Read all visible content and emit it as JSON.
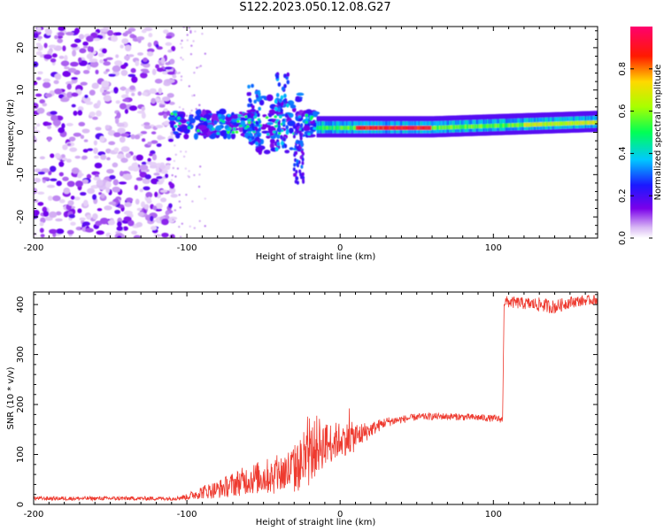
{
  "title": "S122.2023.050.12.08.G27",
  "colors": {
    "snr_line": "#ee3a2f",
    "spectrum_low": "#e9d6f8",
    "spectrum_mid": "#7b00e8",
    "spectrum_high": "#ff0000"
  },
  "chart_data": [
    {
      "type": "heatmap",
      "title": "S122.2023.050.12.08.G27",
      "xlabel": "Height of straight line (km)",
      "ylabel": "Frequency (Hz)",
      "xlim": [
        -200,
        168
      ],
      "ylim": [
        -25,
        25
      ],
      "x_ticks": [
        -200,
        -100,
        0,
        100
      ],
      "y_ticks": [
        -20,
        -10,
        0,
        10,
        20
      ],
      "colorbar": {
        "label": "Normalized spectral amplitude",
        "range": [
          0,
          1
        ],
        "ticks": [
          "0.0",
          "0.2",
          "0.4",
          "0.6",
          "0.8"
        ],
        "colormap": "white-purple-blue-cyan-green-yellow-red-magenta"
      },
      "features": [
        {
          "x_range": [
            -200,
            -100
          ],
          "freq_range": [
            -25,
            25
          ],
          "amplitude": 0.15
        },
        {
          "x_range": [
            -100,
            -15
          ],
          "freq_center": 2,
          "freq_spread": 6,
          "amplitude": 0.4
        },
        {
          "x_range": [
            -55,
            -25
          ],
          "freq_range": [
            -12,
            14
          ],
          "amplitude": 0.35
        },
        {
          "x_range": [
            0,
            168
          ],
          "freq_center": 1.5,
          "freq_spread": 1.5,
          "amplitude": 0.75
        },
        {
          "x_range": [
            10,
            60
          ],
          "freq_center": 0.8,
          "amplitude": 0.95
        }
      ],
      "grid": false
    },
    {
      "type": "line",
      "xlabel": "Height of straight line (km)",
      "ylabel": "SNR (10 * v/v)",
      "xlim": [
        -200,
        168
      ],
      "ylim": [
        0,
        425
      ],
      "x_ticks": [
        -200,
        -100,
        0,
        100
      ],
      "y_ticks": [
        0,
        100,
        200,
        300,
        400
      ],
      "grid": false,
      "series": [
        {
          "x": [
            -200,
            -150,
            -110,
            -100,
            -90,
            -80,
            -70,
            -60,
            -50,
            -40,
            -30,
            -20,
            -15,
            -10,
            0,
            10,
            20,
            30,
            40,
            50,
            60,
            70,
            80,
            90,
            100,
            106,
            107,
            110,
            120,
            130,
            140,
            150,
            160,
            168
          ],
          "values": [
            12,
            12,
            12,
            15,
            25,
            30,
            40,
            50,
            55,
            60,
            70,
            95,
            120,
            120,
            130,
            135,
            150,
            165,
            170,
            175,
            176,
            176,
            175,
            174,
            172,
            170,
            405,
            405,
            402,
            400,
            395,
            405,
            408,
            410
          ],
          "noise": [
            4,
            4,
            4,
            6,
            14,
            18,
            25,
            30,
            35,
            40,
            50,
            60,
            60,
            45,
            35,
            30,
            15,
            10,
            8,
            7,
            7,
            7,
            7,
            7,
            7,
            7,
            12,
            12,
            12,
            14,
            14,
            12,
            10,
            10
          ]
        }
      ]
    }
  ]
}
